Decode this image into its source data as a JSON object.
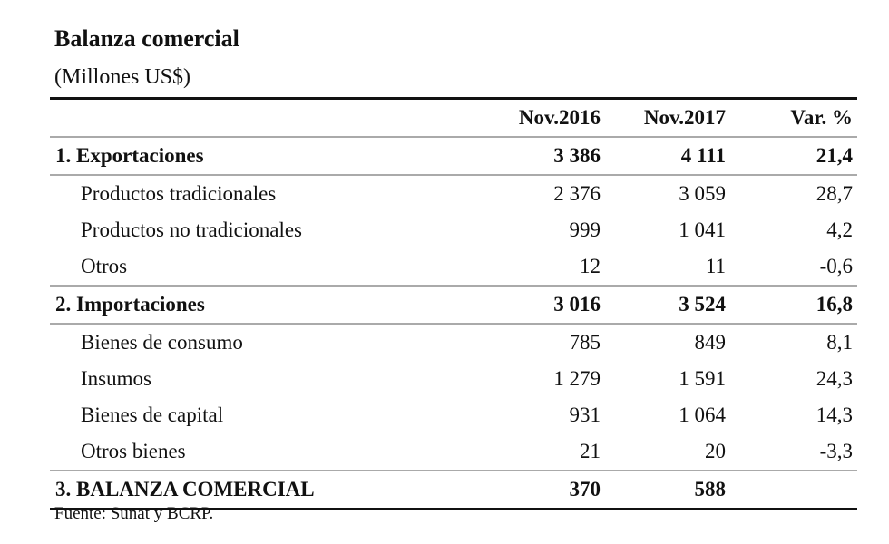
{
  "title": "Balanza comercial",
  "subtitle": "(Millones US$)",
  "columns": [
    "Nov.2016",
    "Nov.2017",
    "Var. %"
  ],
  "rows": [
    {
      "label": "1. Exportaciones",
      "v": [
        "3 386",
        "4 111",
        "21,4"
      ],
      "type": "bold"
    },
    {
      "label": "Productos tradicionales",
      "v": [
        "2 376",
        "3 059",
        "28,7"
      ],
      "type": "sub"
    },
    {
      "label": "Productos no tradicionales",
      "v": [
        "999",
        "1 041",
        "4,2"
      ],
      "type": "sub"
    },
    {
      "label": "Otros",
      "v": [
        "12",
        "11",
        "-0,6"
      ],
      "type": "sub"
    },
    {
      "label": "2. Importaciones",
      "v": [
        "3 016",
        "3 524",
        "16,8"
      ],
      "type": "bold"
    },
    {
      "label": "Bienes de consumo",
      "v": [
        "785",
        "849",
        "8,1"
      ],
      "type": "sub"
    },
    {
      "label": "Insumos",
      "v": [
        "1 279",
        "1 591",
        "24,3"
      ],
      "type": "sub"
    },
    {
      "label": "Bienes de capital",
      "v": [
        "931",
        "1 064",
        "14,3"
      ],
      "type": "sub"
    },
    {
      "label": "Otros bienes",
      "v": [
        "21",
        "20",
        "-3,3"
      ],
      "type": "sub"
    },
    {
      "label": "3. BALANZA  COMERCIAL",
      "v": [
        "370",
        "588",
        ""
      ],
      "type": "bold"
    }
  ],
  "source": "Fuente: Sunat y BCRP."
}
